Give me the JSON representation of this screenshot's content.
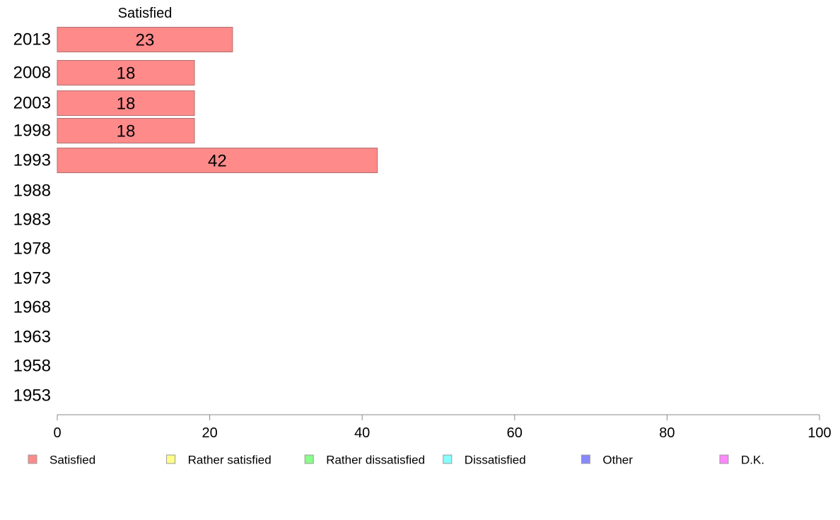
{
  "chart_data": {
    "type": "bar",
    "orientation": "horizontal",
    "stacked": true,
    "categories": [
      "2013",
      "2008",
      "2003",
      "1998",
      "1993",
      "1988",
      "1983",
      "1978",
      "1973",
      "1968",
      "1963",
      "1958",
      "1953"
    ],
    "series": [
      {
        "name": "Satisfied",
        "color": "#ff8a8a",
        "values": [
          23,
          18,
          18,
          18,
          42,
          null,
          null,
          null,
          null,
          null,
          null,
          null,
          null
        ]
      },
      {
        "name": "Rather satisfied",
        "color": "#ffff88",
        "values": [
          null,
          null,
          null,
          null,
          null,
          null,
          null,
          null,
          null,
          null,
          null,
          null,
          null
        ]
      },
      {
        "name": "Rather dissatisfied",
        "color": "#88ff88",
        "values": [
          null,
          null,
          null,
          null,
          null,
          null,
          null,
          null,
          null,
          null,
          null,
          null,
          null
        ]
      },
      {
        "name": "Dissatisfied",
        "color": "#88ffff",
        "values": [
          null,
          null,
          null,
          null,
          null,
          null,
          null,
          null,
          null,
          null,
          null,
          null,
          null
        ]
      },
      {
        "name": "Other",
        "color": "#8888ff",
        "values": [
          null,
          null,
          null,
          null,
          null,
          null,
          null,
          null,
          null,
          null,
          null,
          null,
          null
        ]
      },
      {
        "name": "D.K.",
        "color": "#ff88ff",
        "values": [
          null,
          null,
          null,
          null,
          null,
          null,
          null,
          null,
          null,
          null,
          null,
          null,
          null
        ]
      }
    ],
    "series_header": "Satisfied",
    "xlim": [
      0,
      100
    ],
    "xticks": [
      0,
      20,
      40,
      60,
      80,
      100
    ],
    "grid": false,
    "legend_position": "bottom"
  }
}
